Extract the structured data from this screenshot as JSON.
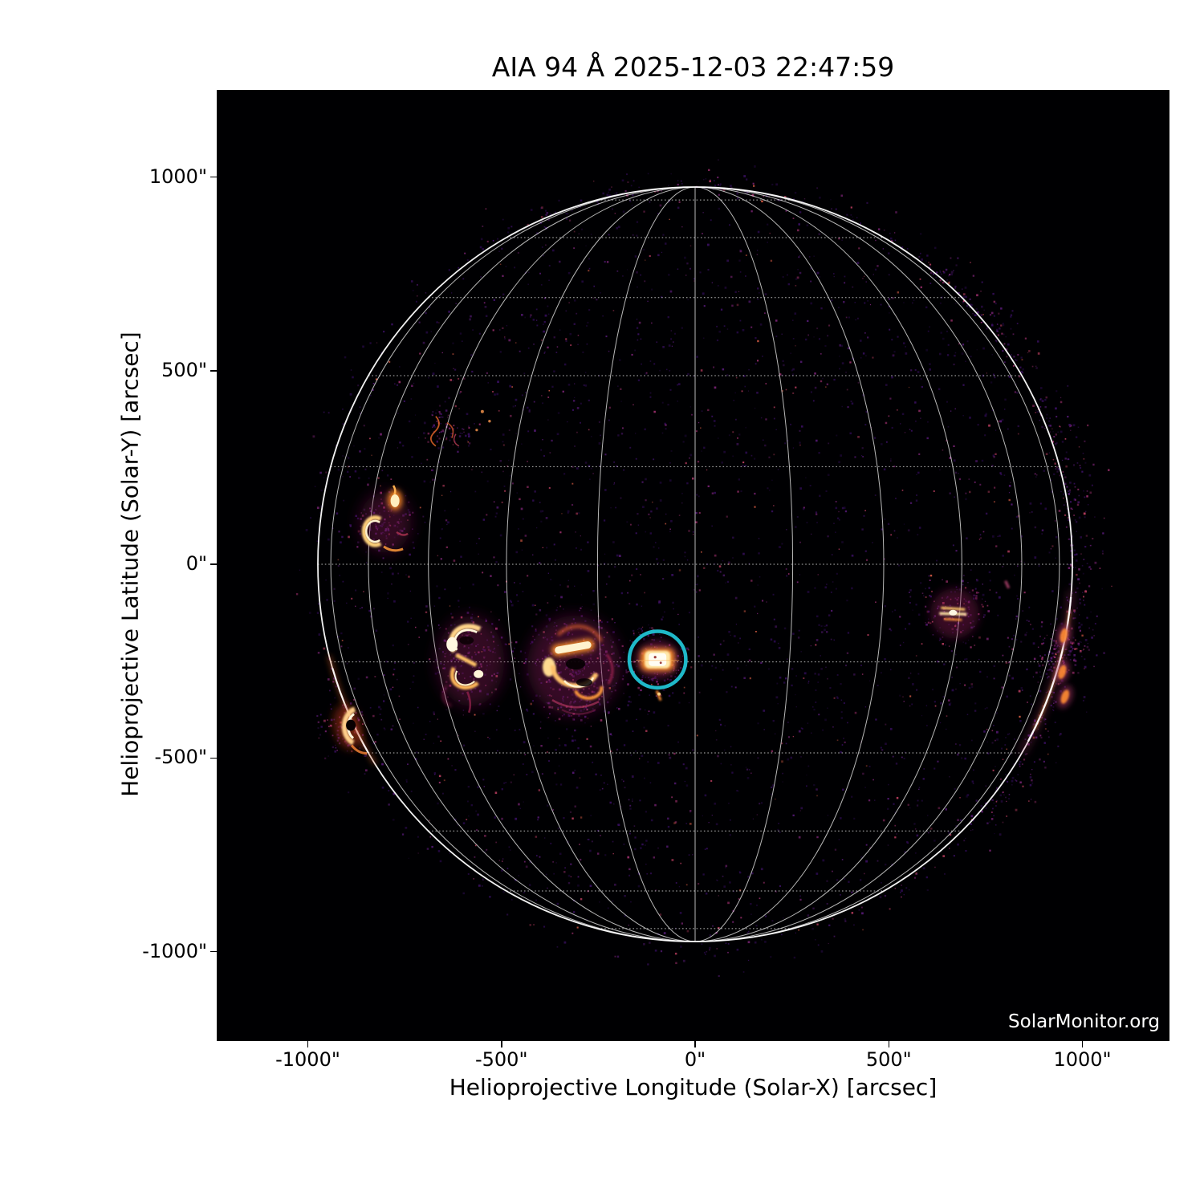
{
  "title": "AIA 94 Å 2025-12-03 22:47:59",
  "watermark": "SolarMonitor.org",
  "chart_data": {
    "type": "heatmap",
    "description": "Full-disk solar EUV image (SDO/AIA 94 Å) with heliographic grid overlay",
    "instrument": "AIA 94 Å",
    "timestamp": "2025-12-03 22:47:59",
    "title": "AIA 94 Å 2025-12-03 22:47:59",
    "xlabel": "Helioprojective Longitude (Solar-X) [arcsec]",
    "ylabel": "Helioprojective Latitude (Solar-Y) [arcsec]",
    "xlim": [
      -1230,
      1230
    ],
    "ylim": [
      -1228,
      1228
    ],
    "xticks": [
      -1000,
      -500,
      0,
      500,
      1000
    ],
    "yticks": [
      1000,
      500,
      0,
      -500,
      -1000
    ],
    "xtick_labels": [
      "-1000\"",
      "-500\"",
      "0\"",
      "500\"",
      "1000\""
    ],
    "ytick_labels": [
      "1000\"",
      "500\"",
      "0\"",
      "-500\"",
      "-1000\""
    ],
    "grid": {
      "style": "heliographic Stonyhurst",
      "spacing_deg": 15,
      "color": "#ffffff"
    },
    "solar_limb": {
      "radius_arcsec": 974,
      "color": "#ffffff"
    },
    "colormap": "sdoaia94 black-purple-magenta-orange-white",
    "plot_background": "#000002",
    "annotation_circle": {
      "x_arcsec": -97,
      "y_arcsec": -246,
      "radius_arcsec": 73,
      "color": "#1fb9c9"
    },
    "features": [
      {
        "name": "ar-northeast-kernel-and-crescents",
        "x_arcsec": -775,
        "y_arcsec": 166,
        "type": "kernel-crescent"
      },
      {
        "name": "faint-thread-region-north",
        "x_arcsec": -649,
        "y_arcsec": 353,
        "type": "threads"
      },
      {
        "name": "ar-loop-complex-east",
        "x_arcsec": -580,
        "y_arcsec": -238,
        "type": "loop-complex-a"
      },
      {
        "name": "ar-loop-complex-central",
        "x_arcsec": -313,
        "y_arcsec": -253,
        "type": "loop-complex-b"
      },
      {
        "name": "flaring-region-circled",
        "x_arcsec": -97,
        "y_arcsec": -246,
        "type": "compact-flare"
      },
      {
        "name": "mini-streak-south-of-circle",
        "x_arcsec": -93,
        "y_arcsec": -339,
        "type": "mini-streak"
      },
      {
        "name": "ar-west",
        "x_arcsec": 670,
        "y_arcsec": -127,
        "type": "streaky"
      },
      {
        "name": "west-limb-blob-1",
        "x_arcsec": 952,
        "y_arcsec": -184,
        "type": "limb-blob"
      },
      {
        "name": "west-limb-blob-2",
        "x_arcsec": 948,
        "y_arcsec": -278,
        "type": "limb-blob"
      },
      {
        "name": "west-limb-blob-3",
        "x_arcsec": 955,
        "y_arcsec": -342,
        "type": "limb-blob"
      },
      {
        "name": "west-limb-faint-dash",
        "x_arcsec": 806,
        "y_arcsec": -52,
        "type": "limb-dash"
      },
      {
        "name": "ar-southeast-limb-crescent",
        "x_arcsec": -893,
        "y_arcsec": -420,
        "type": "limb-crescent"
      }
    ]
  }
}
